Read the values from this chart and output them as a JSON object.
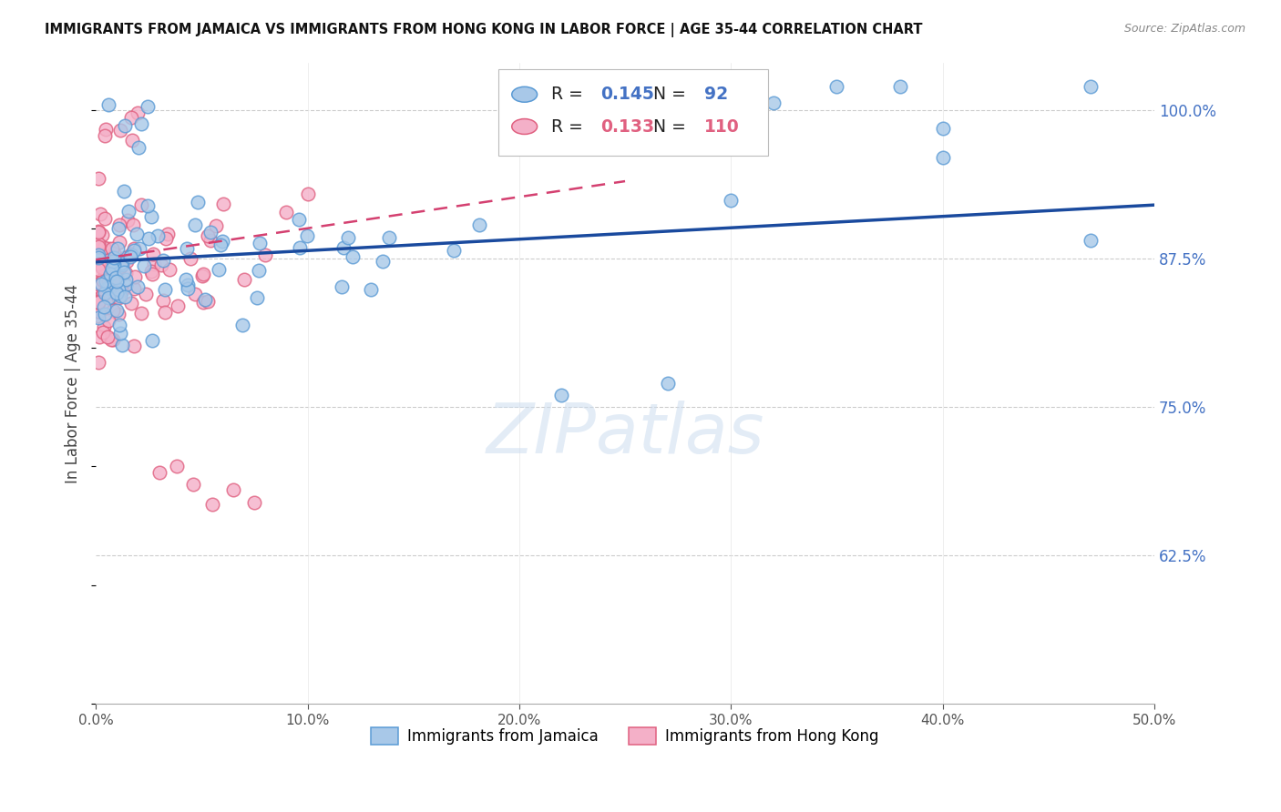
{
  "title": "IMMIGRANTS FROM JAMAICA VS IMMIGRANTS FROM HONG KONG IN LABOR FORCE | AGE 35-44 CORRELATION CHART",
  "source": "Source: ZipAtlas.com",
  "ylabel": "In Labor Force | Age 35-44",
  "ytick_values": [
    0.625,
    0.75,
    0.875,
    1.0
  ],
  "xlim": [
    0.0,
    0.5
  ],
  "ylim": [
    0.5,
    1.04
  ],
  "jamaica_color": "#a8c8e8",
  "jamaica_edge_color": "#5b9bd5",
  "hk_color": "#f4b0c8",
  "hk_edge_color": "#e06080",
  "trend_jamaica_color": "#1a4a9e",
  "trend_hk_color": "#d44070",
  "R_jamaica": 0.145,
  "N_jamaica": 92,
  "R_hk": 0.133,
  "N_hk": 110,
  "legend_label_jamaica": "Immigrants from Jamaica",
  "legend_label_hk": "Immigrants from Hong Kong",
  "watermark": "ZIPatlas"
}
